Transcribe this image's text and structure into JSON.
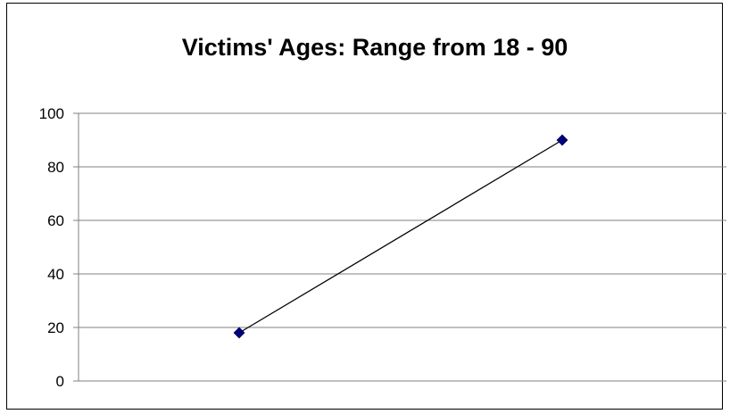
{
  "chart_data": {
    "type": "line",
    "title": "Victims' Ages: Range from 18 - 90",
    "xlabel": "",
    "ylabel": "",
    "ylim": [
      0,
      100
    ],
    "yticks": [
      0,
      20,
      40,
      60,
      80,
      100
    ],
    "grid": true,
    "legend": "none",
    "series": [
      {
        "values": [
          18,
          90
        ],
        "color": "#000080",
        "line_color": "#000000",
        "marker": "diamond"
      }
    ]
  }
}
